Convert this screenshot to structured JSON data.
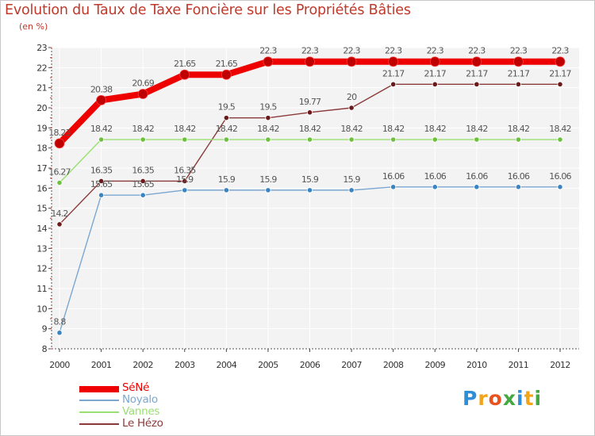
{
  "chart_data": {
    "type": "line",
    "title": "Evolution du Taux de Taxe Foncière sur les Propriétés Bâties",
    "ylabel": "(en %)",
    "x": [
      "2000",
      "2001",
      "2002",
      "2003",
      "2004",
      "2005",
      "2006",
      "2007",
      "2008",
      "2009",
      "2010",
      "2011",
      "2012"
    ],
    "ylim": [
      8,
      23
    ],
    "yticks": [
      8,
      9,
      10,
      11,
      12,
      13,
      14,
      15,
      16,
      17,
      18,
      19,
      20,
      21,
      22,
      23
    ],
    "series": [
      {
        "name": "SéNé",
        "color": "#ee0000",
        "marker": "#c00000",
        "values": [
          18.23,
          20.38,
          20.69,
          21.65,
          21.65,
          22.3,
          22.3,
          22.3,
          22.3,
          22.3,
          22.3,
          22.3,
          22.3
        ],
        "labels": [
          "18.23",
          "20.38",
          "20.69",
          "21.65",
          "21.65",
          "22.3",
          "22.3",
          "22.3",
          "22.3",
          "22.3",
          "22.3",
          "22.3",
          "22.3"
        ]
      },
      {
        "name": "Noyalo",
        "color": "#7ba7d1",
        "marker": "#3b84c0",
        "values": [
          8.8,
          15.65,
          15.65,
          15.9,
          15.9,
          15.9,
          15.9,
          15.9,
          16.06,
          16.06,
          16.06,
          16.06,
          16.06
        ],
        "labels": [
          "8.8",
          "15.65",
          "15.65",
          "15.9",
          "15.9",
          "15.9",
          "15.9",
          "15.9",
          "16.06",
          "16.06",
          "16.06",
          "16.06",
          "16.06"
        ]
      },
      {
        "name": "Vannes",
        "color": "#99e070",
        "marker": "#70c040",
        "values": [
          16.27,
          18.42,
          18.42,
          18.42,
          18.42,
          18.42,
          18.42,
          18.42,
          18.42,
          18.42,
          18.42,
          18.42,
          18.42
        ],
        "labels": [
          "16.27",
          "18.42",
          "18.42",
          "18.42",
          "18.42",
          "18.42",
          "18.42",
          "18.42",
          "18.42",
          "18.42",
          "18.42",
          "18.42",
          "18.42"
        ]
      },
      {
        "name": "Le Hézo",
        "color": "#8b3a3a",
        "marker": "#6a1a1a",
        "values": [
          14.2,
          16.35,
          16.35,
          16.35,
          19.5,
          19.5,
          19.77,
          20,
          21.17,
          21.17,
          21.17,
          21.17,
          21.17
        ],
        "labels": [
          "14.2",
          "16.35",
          "16.35",
          "16.35",
          "19.5",
          "19.5",
          "19.77",
          "20",
          "21.17",
          "21.17",
          "21.17",
          "21.17",
          "21.17"
        ]
      }
    ]
  },
  "legend": [
    {
      "name": "SéNé",
      "color": "#ee0000"
    },
    {
      "name": "Noyalo",
      "color": "#7ba7d1"
    },
    {
      "name": "Vannes",
      "color": "#99e070"
    },
    {
      "name": "Le Hézo",
      "color": "#8b3a3a"
    }
  ],
  "logo": {
    "letters": [
      "P",
      "r",
      "o",
      "x",
      "i",
      "t",
      "i"
    ],
    "colors": [
      "#2e8fd8",
      "#f2a51a",
      "#e9521e",
      "#45a840",
      "#2e8fd8",
      "#f2a51a",
      "#45a840"
    ]
  }
}
